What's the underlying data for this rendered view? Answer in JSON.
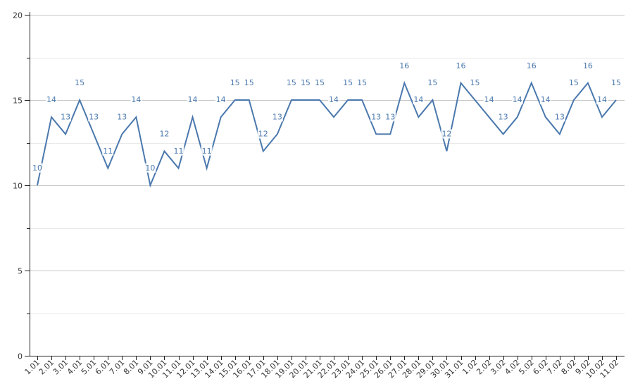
{
  "chart_data": {
    "type": "line",
    "title": "",
    "xlabel": "",
    "ylabel": "",
    "ylim": [
      0,
      20
    ],
    "y_ticks": [
      0,
      5,
      10,
      15,
      20
    ],
    "grid": true,
    "legend": "none",
    "categories": [
      "1.01",
      "2.01",
      "3.01",
      "4.01",
      "5.01",
      "6.01",
      "7.01",
      "8.01",
      "9.01",
      "10.01",
      "11.01",
      "12.01",
      "13.01",
      "14.01",
      "15.01",
      "16.01",
      "17.01",
      "18.01",
      "19.01",
      "20.01",
      "21.01",
      "22.01",
      "23.01",
      "24.01",
      "25.01",
      "26.01",
      "27.01",
      "28.01",
      "29.01",
      "30.01",
      "31.01",
      "1.02",
      "2.02",
      "3.02",
      "4.02",
      "5.02",
      "6.02",
      "7.02",
      "8.02",
      "9.02",
      "10.02",
      "11.02"
    ],
    "series": [
      {
        "values": [
          10,
          14,
          13,
          15,
          13,
          11,
          13,
          14,
          10,
          12,
          11,
          14,
          11,
          14,
          15,
          15,
          12,
          13,
          15,
          15,
          15,
          14,
          15,
          15,
          13,
          13,
          16,
          14,
          15,
          12,
          16,
          15,
          14,
          13,
          14,
          16,
          14,
          13,
          15,
          16,
          14,
          15
        ],
        "labels": [
          "10",
          "14",
          "13",
          "15",
          "13",
          "11",
          "13",
          "14",
          "10",
          "12",
          "11",
          "14",
          "11",
          "14",
          "15",
          "15",
          "12",
          "13",
          "15",
          "15",
          "15",
          "14",
          "15",
          "15",
          "13",
          "13",
          "16",
          "14",
          "15",
          "12",
          "16",
          "15",
          "14",
          "13",
          "14",
          "16",
          "14",
          "13",
          "15",
          "16",
          "14",
          "15"
        ],
        "color": "#4a78ad"
      }
    ],
    "colors": {
      "line": "#4a78ad",
      "label": "#4a78ad",
      "grid_major": "#c8c8c8",
      "grid_minor": "#e8e8e8",
      "axis": "#222222"
    }
  }
}
